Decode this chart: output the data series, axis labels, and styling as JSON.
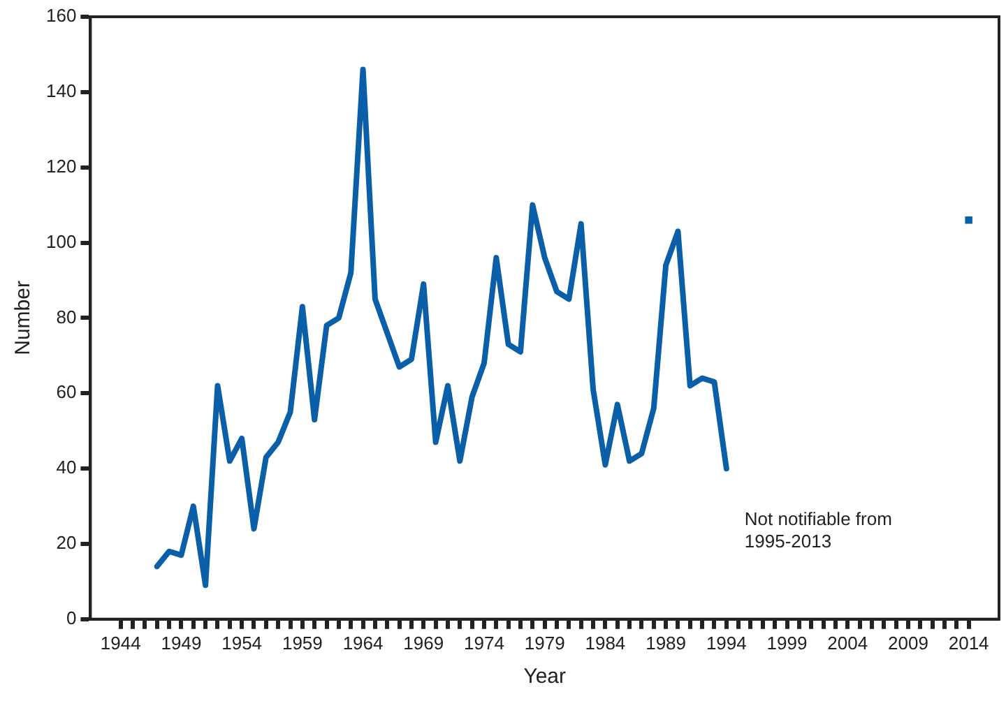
{
  "chart_data": {
    "type": "line",
    "xlabel": "Year",
    "ylabel": "Number",
    "xlim": [
      1941.5,
      2016.5
    ],
    "xticks": [
      1944,
      {
        "value": 1945,
        "label": null
      },
      {
        "value": 1946,
        "label": null
      },
      {
        "value": 1947,
        "label": null
      },
      {
        "value": 1948,
        "label": null
      },
      1949,
      {
        "value": 1950,
        "label": null
      },
      {
        "value": 1951,
        "label": null
      },
      {
        "value": 1952,
        "label": null
      },
      {
        "value": 1953,
        "label": null
      },
      1954,
      {
        "value": 1955,
        "label": null
      },
      {
        "value": 1956,
        "label": null
      },
      {
        "value": 1957,
        "label": null
      },
      {
        "value": 1958,
        "label": null
      },
      1959,
      {
        "value": 1960,
        "label": null
      },
      {
        "value": 1961,
        "label": null
      },
      {
        "value": 1962,
        "label": null
      },
      {
        "value": 1963,
        "label": null
      },
      1964,
      {
        "value": 1965,
        "label": null
      },
      {
        "value": 1966,
        "label": null
      },
      {
        "value": 1967,
        "label": null
      },
      {
        "value": 1968,
        "label": null
      },
      1969,
      {
        "value": 1970,
        "label": null
      },
      {
        "value": 1971,
        "label": null
      },
      {
        "value": 1972,
        "label": null
      },
      {
        "value": 1973,
        "label": null
      },
      1974,
      {
        "value": 1975,
        "label": null
      },
      {
        "value": 1976,
        "label": null
      },
      {
        "value": 1977,
        "label": null
      },
      {
        "value": 1978,
        "label": null
      },
      1979,
      {
        "value": 1980,
        "label": null
      },
      {
        "value": 1981,
        "label": null
      },
      {
        "value": 1982,
        "label": null
      },
      {
        "value": 1983,
        "label": null
      },
      1984,
      {
        "value": 1985,
        "label": null
      },
      {
        "value": 1986,
        "label": null
      },
      {
        "value": 1987,
        "label": null
      },
      {
        "value": 1988,
        "label": null
      },
      1989,
      {
        "value": 1990,
        "label": null
      },
      {
        "value": 1991,
        "label": null
      },
      {
        "value": 1992,
        "label": null
      },
      {
        "value": 1993,
        "label": null
      },
      1994,
      {
        "value": 1995,
        "label": null
      },
      {
        "value": 1996,
        "label": null
      },
      {
        "value": 1997,
        "label": null
      },
      {
        "value": 1998,
        "label": null
      },
      1999,
      {
        "value": 2000,
        "label": null
      },
      {
        "value": 2001,
        "label": null
      },
      {
        "value": 2002,
        "label": null
      },
      {
        "value": 2003,
        "label": null
      },
      2004,
      {
        "value": 2005,
        "label": null
      },
      {
        "value": 2006,
        "label": null
      },
      {
        "value": 2007,
        "label": null
      },
      {
        "value": 2008,
        "label": null
      },
      2009,
      {
        "value": 2010,
        "label": null
      },
      {
        "value": 2011,
        "label": null
      },
      {
        "value": 2012,
        "label": null
      },
      {
        "value": 2013,
        "label": null
      },
      2014
    ],
    "ylim": [
      0,
      160
    ],
    "yticks": [
      0,
      20,
      40,
      60,
      80,
      100,
      120,
      140,
      160
    ],
    "grid": false,
    "legend": false,
    "marker": "none",
    "line_style": "solid",
    "series": [
      {
        "color": "#0b5fa8",
        "x": [
          1947,
          1948,
          1949,
          1950,
          1951,
          1952,
          1953,
          1954,
          1955,
          1956,
          1957,
          1958,
          1959,
          1960,
          1961,
          1962,
          1963,
          1964,
          1965,
          1966,
          1967,
          1968,
          1969,
          1970,
          1971,
          1972,
          1973,
          1974,
          1975,
          1976,
          1977,
          1978,
          1979,
          1980,
          1981,
          1982,
          1983,
          1984,
          1985,
          1986,
          1987,
          1988,
          1989,
          1990,
          1991,
          1992,
          1993,
          1994
        ],
        "values": [
          14,
          18,
          17,
          30,
          9,
          62,
          42,
          48,
          24,
          43,
          47,
          55,
          83,
          53,
          78,
          80,
          92,
          146,
          85,
          76,
          67,
          69,
          89,
          47,
          62,
          42,
          59,
          68,
          96,
          73,
          71,
          110,
          96,
          87,
          85,
          105,
          61,
          41,
          57,
          42,
          44,
          56,
          94,
          103,
          62,
          64,
          63,
          40
        ]
      },
      {
        "type": "scatter",
        "marker": "square",
        "color": "#0b5fa8",
        "x": [
          2014
        ],
        "values": [
          106
        ]
      }
    ],
    "annotations": [
      "Not notifiable from 1995-2013"
    ]
  }
}
